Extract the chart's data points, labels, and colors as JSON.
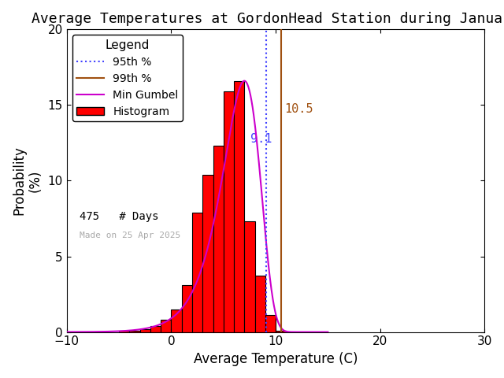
{
  "title": "Average Temperatures at GordonHead Station during January",
  "xlabel": "Average Temperature (C)",
  "ylabel": "Probability\n(%)",
  "xlim": [
    -10,
    30
  ],
  "ylim": [
    0,
    20
  ],
  "yticks": [
    0,
    5,
    10,
    15,
    20
  ],
  "xticks": [
    -10,
    0,
    10,
    20,
    30
  ],
  "bin_edges": [
    -8,
    -7,
    -6,
    -5,
    -4,
    -3,
    -2,
    -1,
    0,
    1,
    2,
    3,
    4,
    5,
    6,
    7,
    8,
    9,
    10,
    11
  ],
  "bin_heights": [
    0.0,
    0.0,
    0.0,
    0.1,
    0.1,
    0.2,
    0.4,
    0.8,
    1.5,
    3.1,
    7.9,
    10.4,
    12.3,
    15.9,
    16.6,
    7.3,
    3.7,
    1.1,
    0.1
  ],
  "hist_color": "#ff0000",
  "hist_edgecolor": "#000000",
  "percentile_95": 9.1,
  "percentile_99": 10.5,
  "percentile_95_color": "#4040ff",
  "percentile_99_color": "#a05010",
  "gumbel_color": "#cc00cc",
  "n_days": 475,
  "made_on": "Made on 25 Apr 2025",
  "background_color": "#ffffff",
  "title_fontsize": 13,
  "axis_fontsize": 12,
  "legend_fontsize": 11,
  "tick_fontsize": 11
}
